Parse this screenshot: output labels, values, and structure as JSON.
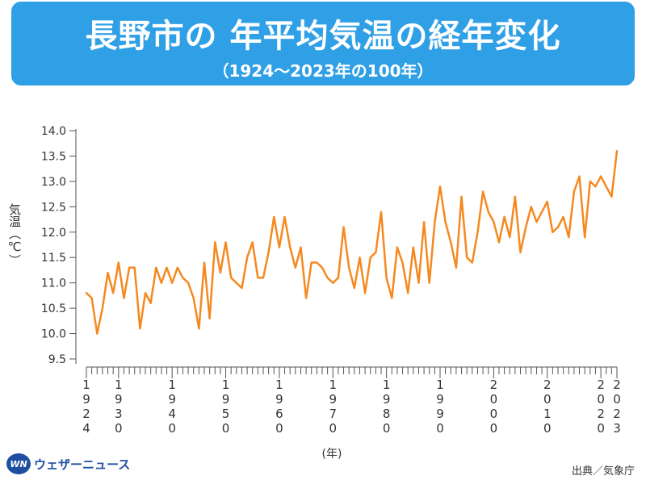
{
  "header": {
    "title": "長野市の 年平均気温の経年変化",
    "subtitle": "（1924～2023年の100年）"
  },
  "footer": {
    "logo_text": "ウェザーニュース",
    "logo_mark": "WN",
    "source": "出典／気象庁"
  },
  "colors": {
    "banner": "#2f9fe6",
    "line": "#f5891f",
    "logo": "#1f4fa3"
  },
  "chart_data": {
    "type": "line",
    "ylabel": "気温（℃）",
    "xlabel": "(年)",
    "ylim": [
      9.5,
      14.0
    ],
    "yticks": [
      "9.5",
      "10.0",
      "10.5",
      "11.0",
      "11.5",
      "12.0",
      "12.5",
      "13.0",
      "13.5",
      "14.0"
    ],
    "xticks": [
      "1924",
      "1930",
      "1940",
      "1950",
      "1960",
      "1970",
      "1980",
      "1990",
      "2000",
      "2010",
      "2020",
      "2023"
    ],
    "x_range": [
      1924,
      2023
    ],
    "grid": false,
    "series": [
      {
        "x": [
          1924,
          1925,
          1926,
          1927,
          1928,
          1929,
          1930,
          1931,
          1932,
          1933,
          1934,
          1935,
          1936,
          1937,
          1938,
          1939,
          1940,
          1941,
          1942,
          1943,
          1944,
          1945,
          1946,
          1947,
          1948,
          1949,
          1950,
          1951,
          1952,
          1953,
          1954,
          1955,
          1956,
          1957,
          1958,
          1959,
          1960,
          1961,
          1962,
          1963,
          1964,
          1965,
          1966,
          1967,
          1968,
          1969,
          1970,
          1971,
          1972,
          1973,
          1974,
          1975,
          1976,
          1977,
          1978,
          1979,
          1980,
          1981,
          1982,
          1983,
          1984,
          1985,
          1986,
          1987,
          1988,
          1989,
          1990,
          1991,
          1992,
          1993,
          1994,
          1995,
          1996,
          1997,
          1998,
          1999,
          2000,
          2001,
          2002,
          2003,
          2004,
          2005,
          2006,
          2007,
          2008,
          2009,
          2010,
          2011,
          2012,
          2013,
          2014,
          2015,
          2016,
          2017,
          2018,
          2019,
          2020,
          2021,
          2022,
          2023
        ],
        "values": [
          10.8,
          10.7,
          10.0,
          10.5,
          11.2,
          10.8,
          11.4,
          10.7,
          11.3,
          11.3,
          10.1,
          10.8,
          10.6,
          11.3,
          11.0,
          11.3,
          11.0,
          11.3,
          11.1,
          11.0,
          10.7,
          10.1,
          11.4,
          10.3,
          11.8,
          11.2,
          11.8,
          11.1,
          11.0,
          10.9,
          11.5,
          11.8,
          11.1,
          11.1,
          11.6,
          12.3,
          11.7,
          12.3,
          11.7,
          11.3,
          11.7,
          10.7,
          11.4,
          11.4,
          11.3,
          11.1,
          11.0,
          11.1,
          12.1,
          11.3,
          10.9,
          11.5,
          10.8,
          11.5,
          11.6,
          12.4,
          11.1,
          10.7,
          11.7,
          11.4,
          10.8,
          11.7,
          11.0,
          12.2,
          11.0,
          12.2,
          12.9,
          12.2,
          11.8,
          11.3,
          12.7,
          11.5,
          11.4,
          12.0,
          12.8,
          12.4,
          12.2,
          11.8,
          12.3,
          11.9,
          12.7,
          11.6,
          12.1,
          12.5,
          12.2,
          12.4,
          12.6,
          12.0,
          12.1,
          12.3,
          11.9,
          12.8,
          13.1,
          11.9,
          13.0,
          12.9,
          13.1,
          12.9,
          12.7,
          13.6
        ]
      }
    ]
  }
}
